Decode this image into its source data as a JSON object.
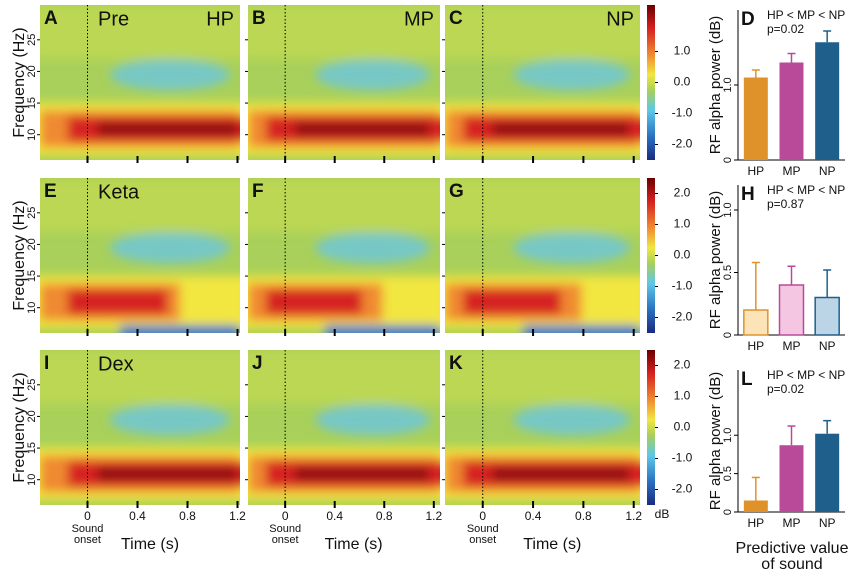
{
  "chart_data": [
    {
      "type": "heatmap",
      "panel": "A",
      "label": "Pre",
      "corner_label": "HP",
      "ylabel": "Frequency (Hz)",
      "xlim": [
        -0.38,
        1.22
      ],
      "ylim": [
        6,
        30.5
      ],
      "xticks": [
        0,
        0.4,
        0.8,
        1.2
      ],
      "yticks": [
        10,
        15,
        20,
        25
      ]
    },
    {
      "type": "heatmap",
      "panel": "B",
      "corner_label": "MP",
      "xlim": [
        -0.3,
        1.25
      ],
      "ylim": [
        6,
        30.5
      ],
      "xticks": [
        0,
        0.4,
        0.8,
        1.2
      ],
      "yticks": [
        10,
        15,
        20,
        25
      ]
    },
    {
      "type": "heatmap",
      "panel": "C",
      "corner_label": "NP",
      "xlim": [
        -0.3,
        1.25
      ],
      "ylim": [
        6,
        30.5
      ],
      "xticks": [
        0,
        0.4,
        0.8,
        1.2
      ],
      "yticks": [
        10,
        15,
        20,
        25
      ],
      "colorbar": {
        "lim": [
          -2.5,
          2.5
        ],
        "ticks": [
          {
            "value": 1,
            "label": "1.0"
          },
          {
            "value": 0,
            "label": "0.0"
          },
          {
            "value": -1,
            "label": "-1.0"
          },
          {
            "value": -2,
            "label": "-2.0"
          }
        ]
      }
    },
    {
      "type": "heatmap",
      "panel": "E",
      "label": "Keta",
      "ylabel": "Frequency (Hz)",
      "xlim": [
        -0.38,
        1.22
      ],
      "ylim": [
        6,
        30.5
      ],
      "xticks": [
        0,
        0.4,
        0.8,
        1.2
      ],
      "yticks": [
        10,
        15,
        20,
        25
      ]
    },
    {
      "type": "heatmap",
      "panel": "F",
      "xlim": [
        -0.3,
        1.25
      ],
      "ylim": [
        6,
        30.5
      ],
      "xticks": [
        0,
        0.4,
        0.8,
        1.2
      ],
      "yticks": [
        10,
        15,
        20,
        25
      ]
    },
    {
      "type": "heatmap",
      "panel": "G",
      "xlim": [
        -0.3,
        1.25
      ],
      "ylim": [
        6,
        30.5
      ],
      "xticks": [
        0,
        0.4,
        0.8,
        1.2
      ],
      "yticks": [
        10,
        15,
        20,
        25
      ],
      "colorbar": {
        "lim": [
          -2.5,
          2.5
        ],
        "ticks": [
          {
            "value": 2,
            "label": "2.0"
          },
          {
            "value": 1,
            "label": "1.0"
          },
          {
            "value": 0,
            "label": "0.0"
          },
          {
            "value": -1,
            "label": "-1.0"
          },
          {
            "value": -2,
            "label": "-2.0"
          }
        ]
      }
    },
    {
      "type": "heatmap",
      "panel": "I",
      "label": "Dex",
      "ylabel": "Frequency (Hz)",
      "xlabel": "Time (s)",
      "onset_label": "Sound onset",
      "xlim": [
        -0.38,
        1.22
      ],
      "ylim": [
        6,
        30.5
      ],
      "xticks": [
        0,
        0.4,
        0.8,
        1.2
      ],
      "yticks": [
        10,
        15,
        20,
        25
      ]
    },
    {
      "type": "heatmap",
      "panel": "J",
      "xlabel": "Time (s)",
      "onset_label": "Sound onset",
      "xlim": [
        -0.3,
        1.25
      ],
      "ylim": [
        6,
        30.5
      ],
      "xticks": [
        0,
        0.4,
        0.8,
        1.2
      ],
      "yticks": [
        10,
        15,
        20,
        25
      ]
    },
    {
      "type": "heatmap",
      "panel": "K",
      "xlabel": "Time (s)",
      "onset_label": "Sound onset",
      "xlim": [
        -0.3,
        1.25
      ],
      "ylim": [
        6,
        30.5
      ],
      "xticks": [
        0,
        0.4,
        0.8,
        1.2
      ],
      "yticks": [
        10,
        15,
        20,
        25
      ],
      "colorbar": {
        "lim": [
          -2.5,
          2.5
        ],
        "unit": "dB",
        "ticks": [
          {
            "value": 2,
            "label": "2.0"
          },
          {
            "value": 1,
            "label": "1.0"
          },
          {
            "value": 0,
            "label": "0.0"
          },
          {
            "value": -1,
            "label": "-1.0"
          },
          {
            "value": -2,
            "label": "-2.0"
          }
        ]
      }
    },
    {
      "type": "bar",
      "panel": "D",
      "subtitle": [
        "HP < MP < NP",
        "p=0.02"
      ],
      "ylabel": "RF alpha power (dB)",
      "categories": [
        "HP",
        "MP",
        "NP"
      ],
      "values": [
        1.1,
        1.3,
        1.57
      ],
      "errors": [
        0.1,
        0.12,
        0.15
      ],
      "colors": [
        "#e0922a",
        "#b94a9a",
        "#1f5f8c"
      ],
      "ylim": [
        0,
        2
      ],
      "yticks": [
        0,
        {
          "value": 1,
          "label": "1.0"
        }
      ]
    },
    {
      "type": "bar",
      "panel": "H",
      "subtitle": [
        "HP < MP < NP",
        "p=0.87"
      ],
      "ylabel": "RF alpha power (dB)",
      "categories": [
        "HP",
        "MP",
        "NP"
      ],
      "values": [
        0.2,
        0.4,
        0.3
      ],
      "errors": [
        0.38,
        0.15,
        0.22
      ],
      "colors": [
        "#fde4b8",
        "#f4c6e2",
        "#bcd5e6"
      ],
      "edge_colors": [
        "#e0922a",
        "#b94a9a",
        "#1f5f8c"
      ],
      "ylim": [
        0,
        1.2
      ],
      "yticks": [
        0,
        0.5,
        {
          "value": 1,
          "label": "1.0"
        }
      ]
    },
    {
      "type": "bar",
      "panel": "L",
      "subtitle": [
        "HP < MP < NP",
        "p=0.02"
      ],
      "ylabel": "RF alpha power (dB)",
      "xlabel": [
        "Predictive value",
        "of sound"
      ],
      "categories": [
        "HP",
        "MP",
        "NP"
      ],
      "values": [
        0.15,
        0.87,
        1.02
      ],
      "errors": [
        0.3,
        0.25,
        0.17
      ],
      "colors": [
        "#e0922a",
        "#b94a9a",
        "#1f5f8c"
      ],
      "ylim": [
        0,
        1.85
      ],
      "yticks": [
        0,
        0.5,
        {
          "value": 1,
          "label": "1.0"
        }
      ]
    }
  ]
}
